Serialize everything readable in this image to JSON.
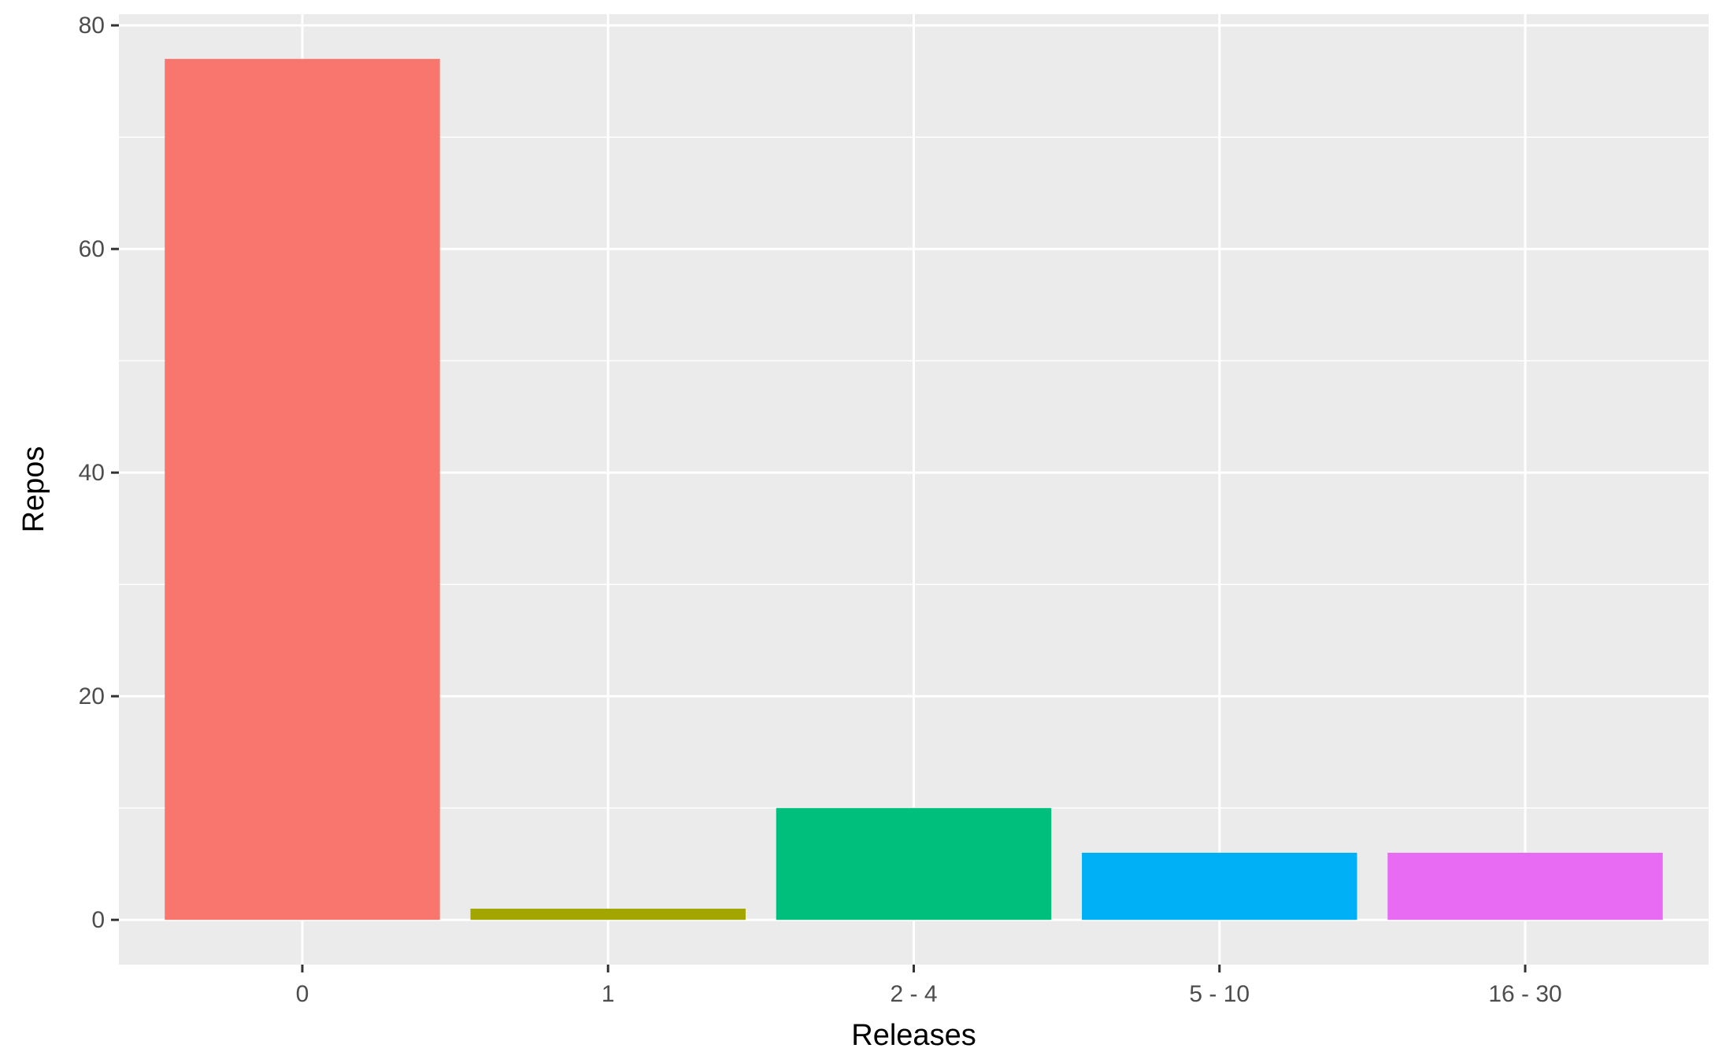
{
  "chart_data": {
    "type": "bar",
    "categories": [
      "0",
      "1",
      "2 - 4",
      "5 - 10",
      "16 - 30"
    ],
    "values": [
      77,
      1,
      10,
      6,
      6
    ],
    "colors": [
      "#F8766D",
      "#A3A500",
      "#00BF7D",
      "#00B0F6",
      "#E76BF3"
    ],
    "xlabel": "Releases",
    "ylabel": "Repos",
    "ylim": [
      -4,
      81
    ],
    "yticks": [
      0,
      20,
      40,
      60,
      80
    ],
    "grid": true,
    "legend": "none",
    "panel_background": "#EBEBEB",
    "grid_color": "#FFFFFF"
  }
}
